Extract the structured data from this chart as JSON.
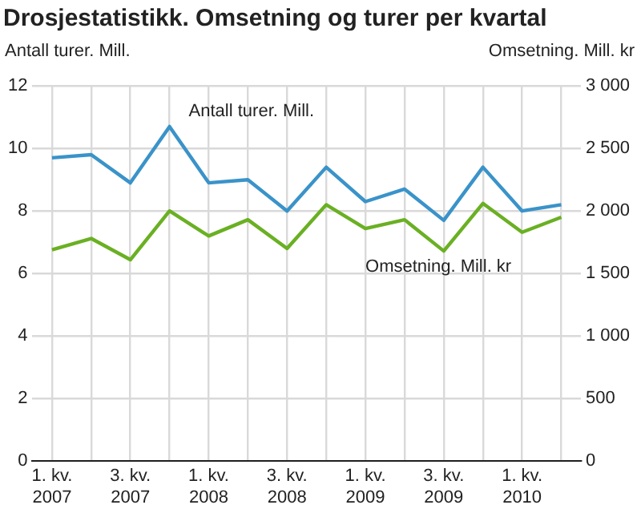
{
  "chart_data": {
    "type": "line",
    "title": "Drosjestatistikk. Omsetning og turer per kvartal",
    "ylabel": "Antall turer. Mill.",
    "y2label": "Omsetning. Mill. kr",
    "categories": [
      "1. kv. 2007",
      null,
      "3. kv. 2007",
      null,
      "1. kv. 2008",
      null,
      "3. kv. 2008",
      null,
      "1. kv. 2009",
      null,
      "3. kv. 2009",
      null,
      "1. kv. 2010",
      null
    ],
    "series": [
      {
        "name": "Antall turer. Mill.",
        "color": "#3a93c9",
        "values": [
          9.7,
          9.8,
          8.9,
          10.7,
          8.9,
          9.0,
          8.0,
          9.4,
          8.3,
          8.7,
          7.7,
          9.4,
          8.0,
          8.2
        ]
      },
      {
        "name": "Omsetning. Mill. kr",
        "color": "#6ab023",
        "axis": "y2",
        "values": [
          1690,
          1780,
          1610,
          2000,
          1800,
          1930,
          1700,
          2050,
          1860,
          1930,
          1680,
          2060,
          1830,
          1950
        ]
      }
    ],
    "ylim": [
      0,
      12
    ],
    "yticks": [
      0,
      2,
      4,
      6,
      8,
      10,
      12
    ],
    "y2lim": [
      0,
      3000
    ],
    "y2ticks": [
      0,
      {
        "value": 500,
        "label": "500"
      },
      {
        "value": 1000,
        "label": "1 000"
      },
      {
        "value": 1500,
        "label": "1 500"
      },
      {
        "value": 2000,
        "label": "2 000"
      },
      {
        "value": 2500,
        "label": "2 500"
      },
      {
        "value": 3000,
        "label": "3 000"
      }
    ],
    "grid": true,
    "legend": false,
    "marker": "none",
    "line_style": "solid"
  }
}
